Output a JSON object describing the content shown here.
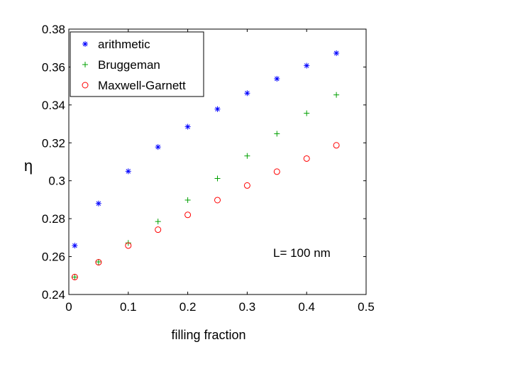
{
  "chart_data": {
    "type": "scatter",
    "xlabel": "filling fraction",
    "ylabel": "η",
    "xlim": [
      0,
      0.5
    ],
    "ylim": [
      0.24,
      0.38
    ],
    "xticks": [
      "0",
      "0.1",
      "0.2",
      "0.3",
      "0.4",
      "0.5"
    ],
    "yticks": [
      "0.24",
      "0.26",
      "0.28",
      "0.3",
      "0.32",
      "0.34",
      "0.36",
      "0.38"
    ],
    "grid": false,
    "legend_position": "top-left",
    "annotation": "L= 100 nm",
    "x": [
      0.01,
      0.05,
      0.1,
      0.15,
      0.2,
      0.25,
      0.3,
      0.35,
      0.4,
      0.45
    ],
    "series": [
      {
        "name": "arithmetic",
        "marker": "asterisk",
        "color": "#0000ff",
        "values": [
          0.2658,
          0.288,
          0.305,
          0.3178,
          0.3285,
          0.3378,
          0.3462,
          0.3538,
          0.3607,
          0.3673
        ]
      },
      {
        "name": "Bruggeman",
        "marker": "plus",
        "color": "#00a000",
        "values": [
          0.2492,
          0.2572,
          0.2672,
          0.2785,
          0.2898,
          0.3012,
          0.3131,
          0.3248,
          0.3356,
          0.3453
        ]
      },
      {
        "name": "Maxwell-Garnett",
        "marker": "circle",
        "color": "#ff0000",
        "values": [
          0.2492,
          0.257,
          0.2658,
          0.2742,
          0.282,
          0.2898,
          0.2975,
          0.3048,
          0.3117,
          0.3187
        ]
      }
    ]
  }
}
